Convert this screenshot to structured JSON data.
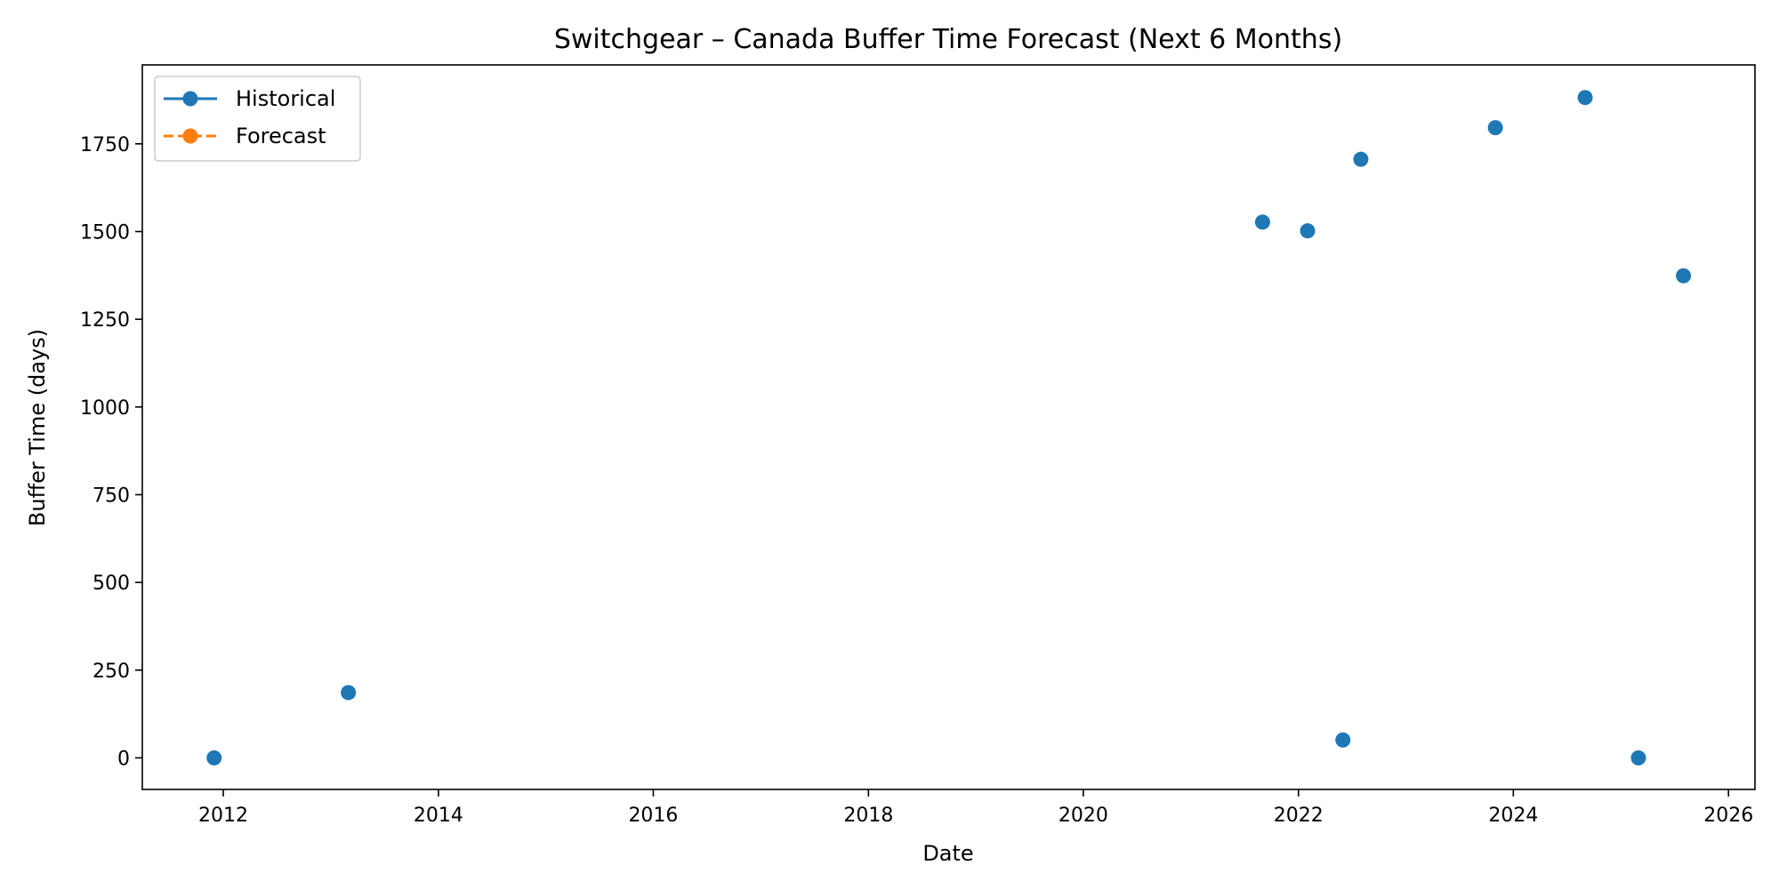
{
  "chart_data": {
    "type": "scatter",
    "title": "Switchgear – Canada Buffer Time Forecast (Next 6 Months)",
    "xlabel": "Date",
    "ylabel": "Buffer Time (days)",
    "x_axis_type": "date",
    "xlim": [
      "2011-04-01",
      "2026-04-01"
    ],
    "ylim": [
      -90,
      1975
    ],
    "x_ticks": [
      "2012",
      "2014",
      "2016",
      "2018",
      "2020",
      "2022",
      "2024",
      "2026"
    ],
    "y_ticks": [
      "0",
      "250",
      "500",
      "750",
      "1000",
      "1250",
      "1500",
      "1750"
    ],
    "grid": false,
    "legend_position": "top-left",
    "series": [
      {
        "name": "Historical",
        "color": "#1f77b4",
        "line_style": "solid",
        "marker": "circle",
        "points": [
          {
            "x": "2011-12-01",
            "y": 0
          },
          {
            "x": "2013-03-01",
            "y": 186
          },
          {
            "x": "2021-09-01",
            "y": 1527
          },
          {
            "x": "2022-02-01",
            "y": 1502
          },
          {
            "x": "2022-06-01",
            "y": 51
          },
          {
            "x": "2022-08-01",
            "y": 1706
          },
          {
            "x": "2023-11-01",
            "y": 1796
          },
          {
            "x": "2024-09-01",
            "y": 1882
          },
          {
            "x": "2025-03-01",
            "y": 0
          },
          {
            "x": "2025-08-01",
            "y": 1374
          }
        ]
      },
      {
        "name": "Forecast",
        "color": "#ff7f0e",
        "line_style": "dashed",
        "marker": "circle",
        "points": []
      }
    ]
  }
}
